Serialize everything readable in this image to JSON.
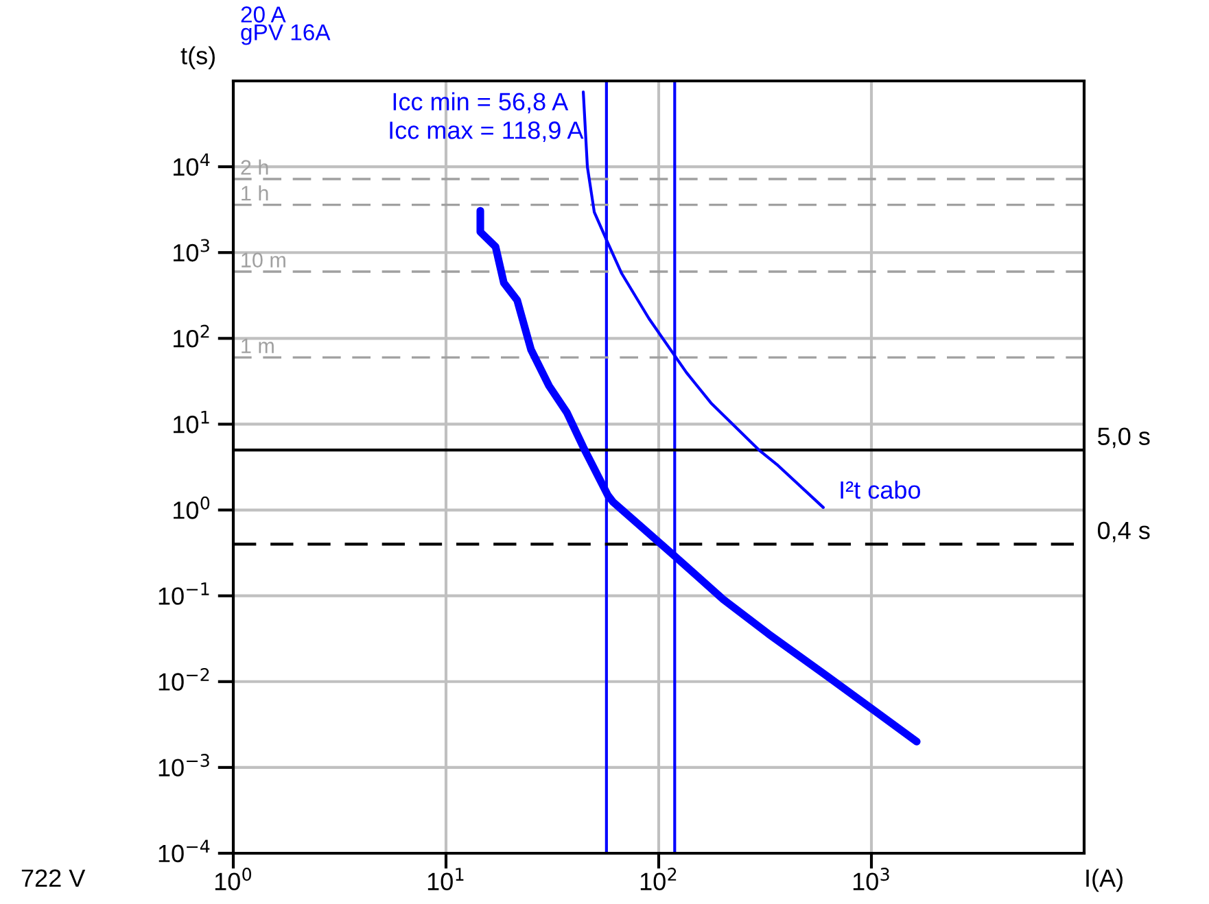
{
  "chart_data": {
    "type": "line",
    "title": "20 A",
    "subtitle": "gPV 16A",
    "xlabel": "I(A)",
    "ylabel": "t(s)",
    "log": "xy",
    "grid": true,
    "legend": false,
    "marker": "none",
    "xlim": [
      1,
      10000
    ],
    "ylim": [
      0.0001,
      100000
    ],
    "xticks": [
      {
        "value": 1,
        "label": "10$^{0}$"
      },
      {
        "value": 10,
        "label": "10$^{1}$"
      },
      {
        "value": 100,
        "label": "10$^{2}$"
      },
      {
        "value": 1000,
        "label": "10$^{3}$"
      }
    ],
    "yticks": [
      {
        "value": 0.0001,
        "label": "10$^{−4}$"
      },
      {
        "value": 0.001,
        "label": "10$^{−3}$"
      },
      {
        "value": 0.01,
        "label": "10$^{−2}$"
      },
      {
        "value": 0.1,
        "label": "10$^{−1}$"
      },
      {
        "value": 1,
        "label": "10$^{0}$"
      },
      {
        "value": 10,
        "label": "10$^{1}$"
      },
      {
        "value": 100,
        "label": "10$^{2}$"
      },
      {
        "value": 1000,
        "label": "10$^{3}$"
      },
      {
        "value": 10000,
        "label": "10$^{4}$"
      }
    ],
    "series": [
      {
        "color": "#0000ff",
        "line_style": "solid",
        "x": [
          14.5,
          14.5,
          17.1,
          18.7,
          21.6,
          25.1,
          30.5,
          37,
          44.2,
          57.7,
          61,
          119,
          201,
          328,
          622,
          1633
        ],
        "values": [
          3070,
          1740,
          1167,
          444,
          279,
          74,
          28,
          13.7,
          5.4,
          1.48,
          1.24,
          0.29,
          0.091,
          0.036,
          0.0115,
          0.002
        ]
      },
      {
        "name": "I²t cabo",
        "color": "#0000ff",
        "line_style": "solid",
        "x": [
          44.2,
          46.2,
          49.8,
          57.7,
          67,
          90,
          135,
          176,
          296,
          364,
          594
        ],
        "values": [
          74300,
          10000,
          2950,
          1290,
          570,
          170,
          40,
          17.7,
          5.0,
          3.3,
          1.07
        ]
      }
    ],
    "ref_lines": [
      {
        "axis": "x",
        "value": 56.8,
        "label": "Icc min = 56,8 A",
        "color": "#0000ff",
        "line_style": "solid"
      },
      {
        "axis": "x",
        "value": 118.9,
        "label": "Icc max = 118,9 A",
        "color": "#0000ff",
        "line_style": "solid"
      },
      {
        "axis": "y",
        "value": 5,
        "label": "5,0 s",
        "color": "#000000",
        "line_style": "solid"
      },
      {
        "axis": "y",
        "value": 0.4,
        "label": "0,4 s",
        "color": "#000000",
        "line_style": "dashed"
      },
      {
        "axis": "y",
        "value": 7200,
        "label": "2 h",
        "color": "#a0a0a0",
        "line_style": "dashed"
      },
      {
        "axis": "y",
        "value": 3600,
        "label": "1 h",
        "color": "#a0a0a0",
        "line_style": "dashed"
      },
      {
        "axis": "y",
        "value": 600,
        "label": "10 m",
        "color": "#a0a0a0",
        "line_style": "dashed"
      },
      {
        "axis": "y",
        "value": 60,
        "label": "1 m",
        "color": "#a0a0a0",
        "line_style": "dashed"
      }
    ],
    "annotations": [
      "722 V"
    ]
  }
}
